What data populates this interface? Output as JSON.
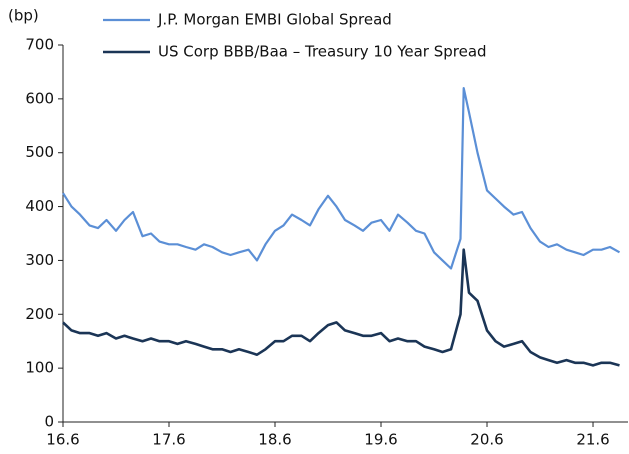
{
  "chart_data": {
    "type": "line",
    "y_unit_label": "(bp)",
    "x": [
      16.42,
      16.5,
      16.58,
      16.67,
      16.75,
      16.83,
      16.92,
      17.0,
      17.08,
      17.17,
      17.25,
      17.33,
      17.42,
      17.5,
      17.58,
      17.67,
      17.75,
      17.83,
      17.92,
      18.0,
      18.08,
      18.17,
      18.25,
      18.33,
      18.42,
      18.5,
      18.58,
      18.67,
      18.75,
      18.83,
      18.92,
      19.0,
      19.08,
      19.17,
      19.25,
      19.33,
      19.42,
      19.5,
      19.58,
      19.67,
      19.75,
      19.83,
      19.92,
      20.0,
      20.08,
      20.17,
      20.2,
      20.25,
      20.33,
      20.42,
      20.5,
      20.58,
      20.67,
      20.75,
      20.83,
      20.92,
      21.0,
      21.08,
      21.17,
      21.25,
      21.33,
      21.42,
      21.5,
      21.58,
      21.67
    ],
    "series": [
      {
        "name": "J.P. Morgan EMBI Global Spread",
        "color": "#5b8fd6",
        "values": [
          425,
          400,
          385,
          365,
          360,
          375,
          355,
          375,
          390,
          345,
          350,
          335,
          330,
          330,
          325,
          320,
          330,
          325,
          315,
          310,
          315,
          320,
          300,
          330,
          355,
          365,
          385,
          375,
          365,
          395,
          420,
          400,
          375,
          365,
          355,
          370,
          375,
          355,
          385,
          370,
          355,
          350,
          315,
          300,
          285,
          340,
          620,
          575,
          500,
          430,
          415,
          400,
          385,
          390,
          360,
          335,
          325,
          330,
          320,
          315,
          310,
          320,
          320,
          325,
          315
        ]
      },
      {
        "name": "US Corp BBB/Baa – Treasury 10 Year Spread",
        "color": "#1b3556",
        "values": [
          185,
          170,
          165,
          165,
          160,
          165,
          155,
          160,
          155,
          150,
          155,
          150,
          150,
          145,
          150,
          145,
          140,
          135,
          135,
          130,
          135,
          130,
          125,
          135,
          150,
          150,
          160,
          160,
          150,
          165,
          180,
          185,
          170,
          165,
          160,
          160,
          165,
          150,
          155,
          150,
          150,
          140,
          135,
          130,
          135,
          200,
          320,
          240,
          225,
          170,
          150,
          140,
          145,
          150,
          130,
          120,
          115,
          110,
          115,
          110,
          110,
          105,
          110,
          110,
          105
        ]
      }
    ],
    "xlim": [
      16.42,
      21.75
    ],
    "xticks": [
      {
        "value": 16.42,
        "label": "16.6"
      },
      {
        "value": 17.42,
        "label": "17.6"
      },
      {
        "value": 18.42,
        "label": "18.6"
      },
      {
        "value": 19.42,
        "label": "19.6"
      },
      {
        "value": 20.42,
        "label": "20.6"
      },
      {
        "value": 21.42,
        "label": "21.6"
      }
    ],
    "ylim": [
      0,
      700
    ],
    "yticks": [
      0,
      100,
      200,
      300,
      400,
      500,
      600,
      700
    ],
    "grid": false
  }
}
